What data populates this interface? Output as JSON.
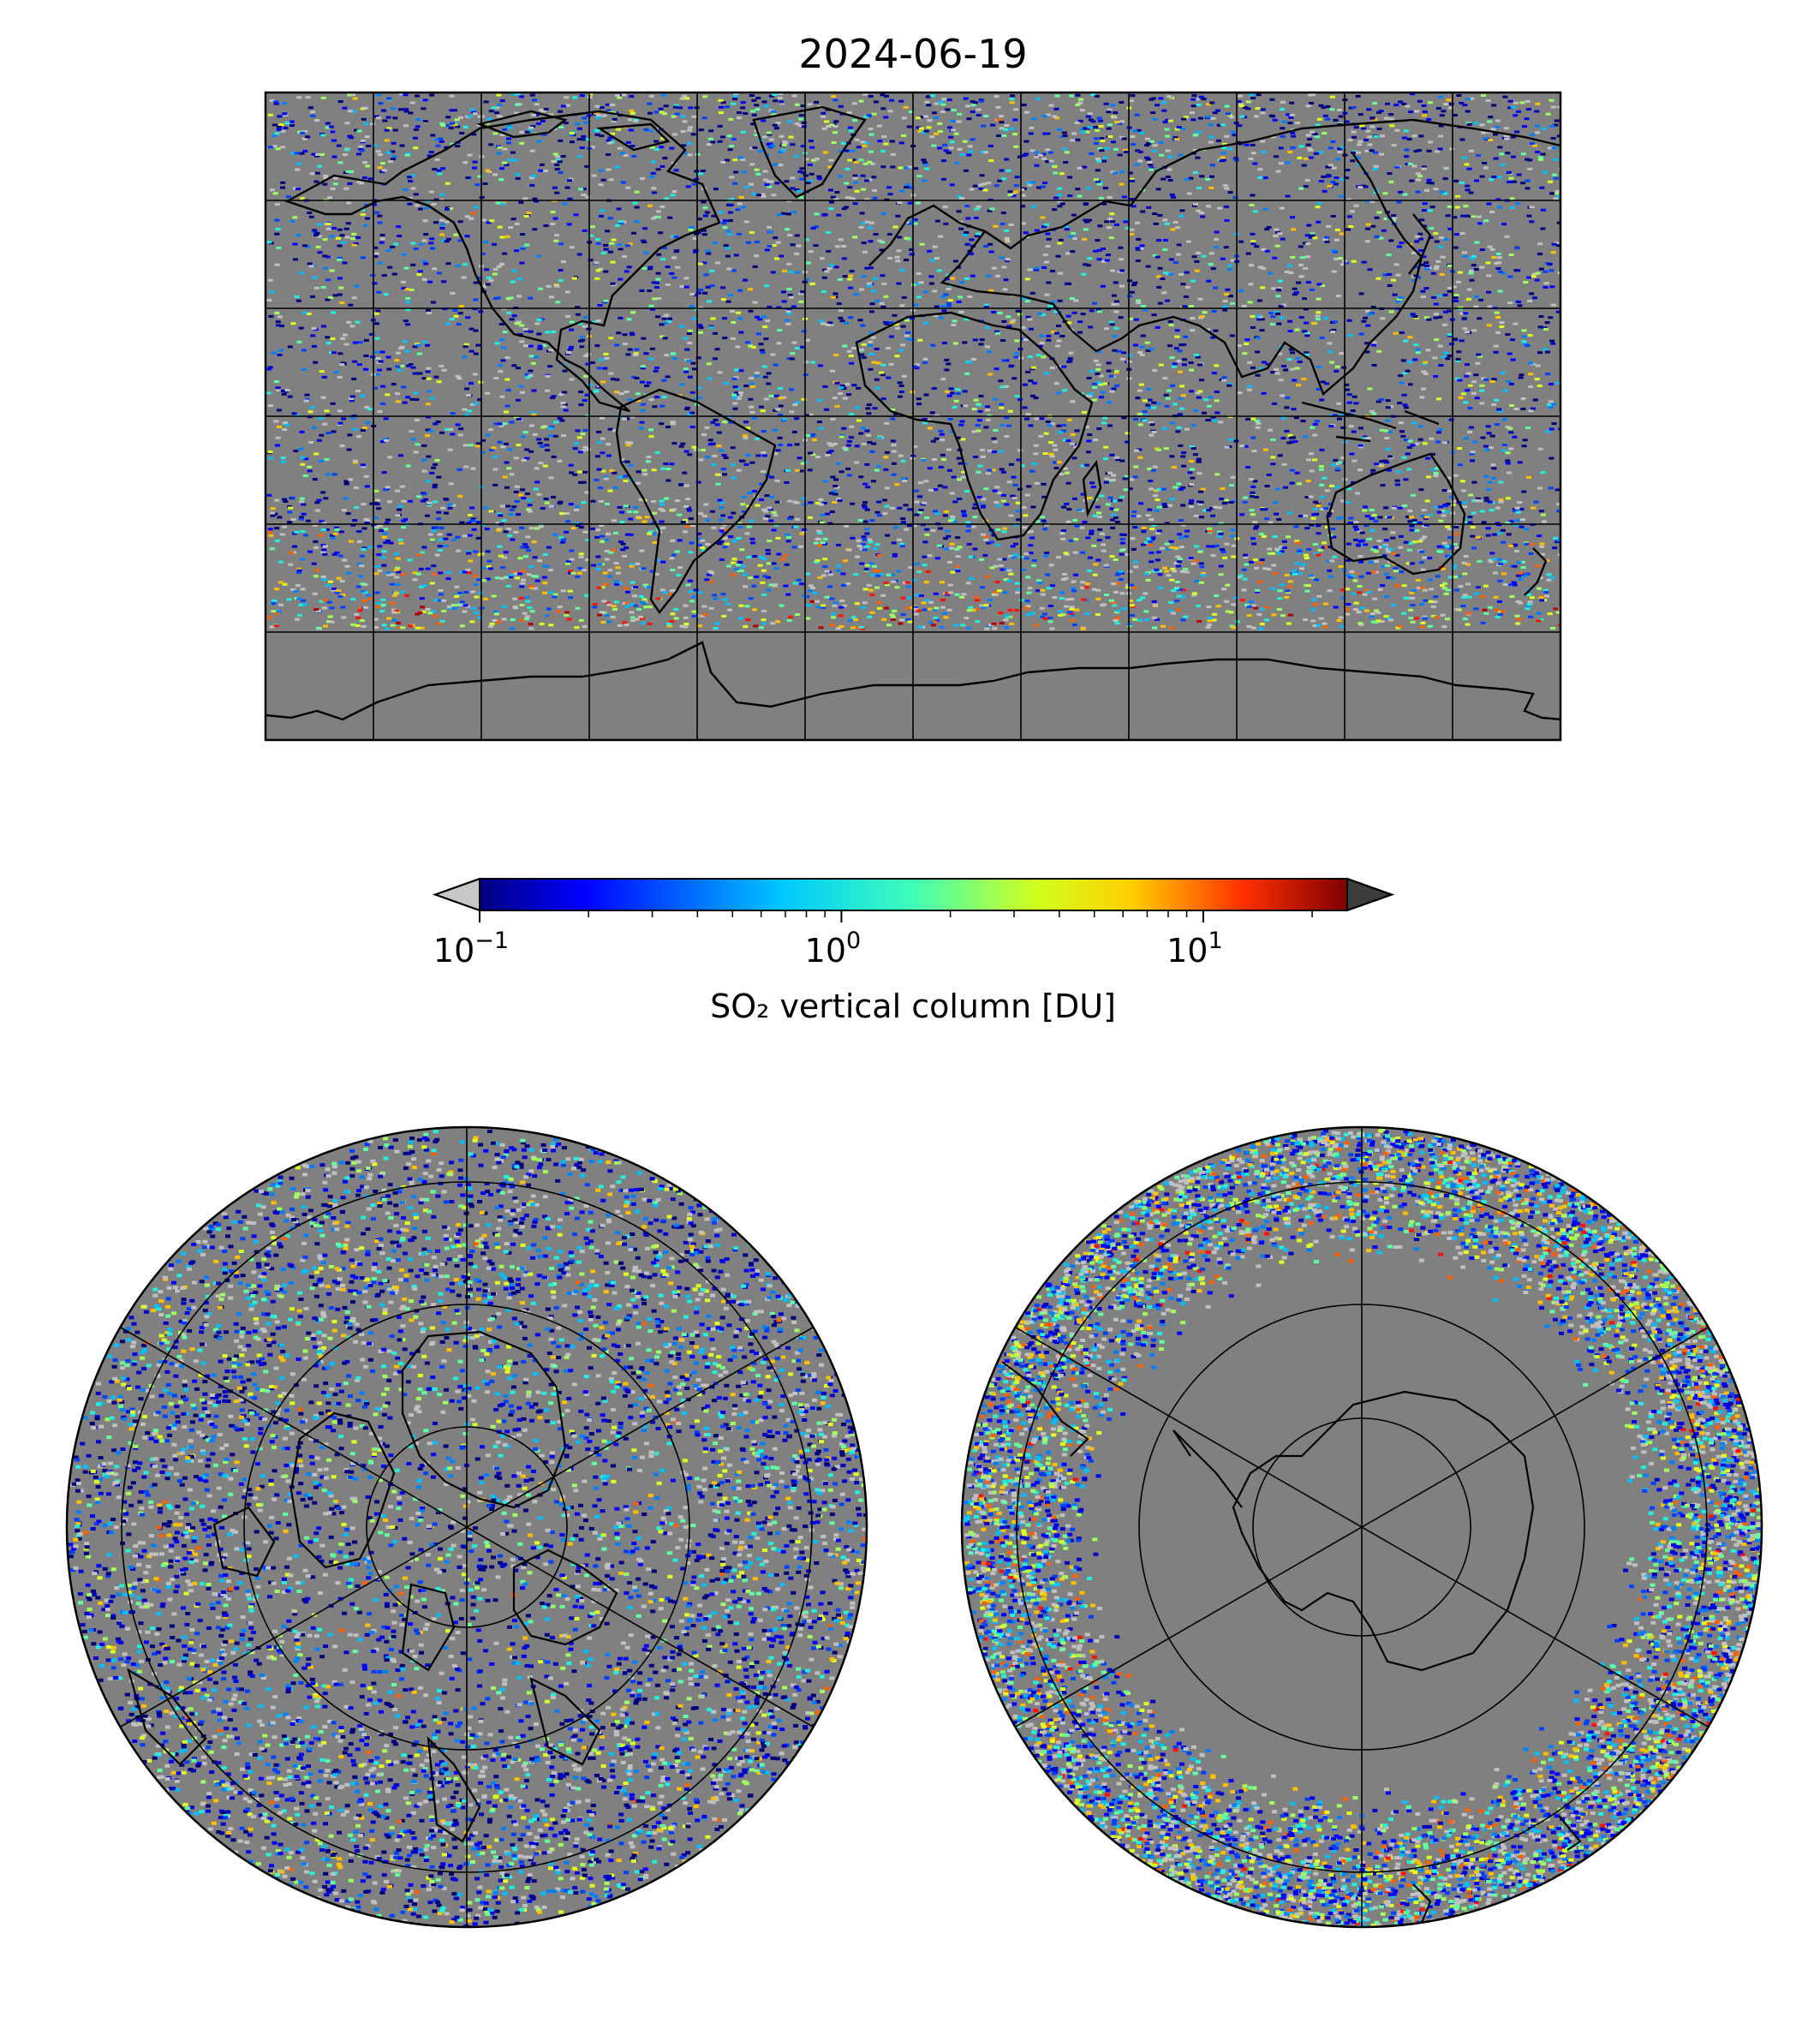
{
  "title": "2024-06-19",
  "colorbar": {
    "label": "SO₂ vertical column [DU]",
    "scale": "log",
    "range": [
      0.1,
      25
    ],
    "ticks": [
      {
        "value": 0.1,
        "mantissa": "10",
        "exponent": "−1"
      },
      {
        "value": 1,
        "mantissa": "10",
        "exponent": "0"
      },
      {
        "value": 10,
        "mantissa": "10",
        "exponent": "1"
      }
    ],
    "under_color": "#c8c8c8",
    "over_color": "#3c3c3c",
    "colormap": "jet"
  },
  "background_color": "#808080",
  "panels": [
    {
      "projection": "plate-carree",
      "extent": "global",
      "gridlines": "30°"
    },
    {
      "projection": "north-polar-stereographic",
      "gridlines": "30°"
    },
    {
      "projection": "south-polar-stereographic",
      "gridlines": "30°"
    }
  ]
}
